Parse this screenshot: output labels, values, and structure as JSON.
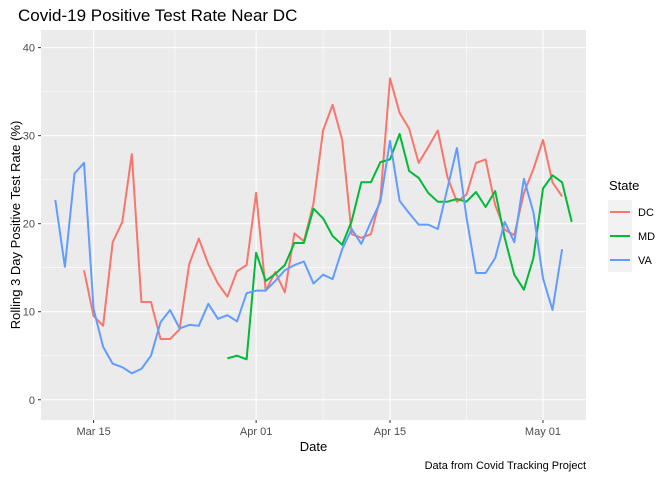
{
  "chart_data": {
    "type": "line",
    "title": "Covid-19 Positive Test Rate Near DC",
    "caption": "Data from Covid Tracking Project",
    "xlabel": "Date",
    "ylabel": "Rolling 3 Day Positive Test Rate (%)",
    "x_tick_labels": [
      {
        "label": "Mar 15",
        "day": 14
      },
      {
        "label": "Apr 01",
        "day": 31
      },
      {
        "label": "Apr 15",
        "day": 45
      },
      {
        "label": "May 01",
        "day": 61
      }
    ],
    "x_unit_note": "day = day of year 2020 offset from Mar 1 = 0",
    "ylim": [
      -2.3,
      42
    ],
    "yticks": [
      0,
      10,
      20,
      30,
      40
    ],
    "grid": true,
    "legend": {
      "title": "State",
      "position": "right"
    },
    "series": [
      {
        "name": "DC",
        "color": "#F8766D",
        "points": [
          [
            13,
            14.7
          ],
          [
            14,
            9.5
          ],
          [
            15,
            8.4
          ],
          [
            16,
            17.9
          ],
          [
            17,
            20.2
          ],
          [
            18,
            27.9
          ],
          [
            19,
            11.1
          ],
          [
            20,
            11.1
          ],
          [
            21,
            6.9
          ],
          [
            22,
            6.9
          ],
          [
            23,
            8.0
          ],
          [
            24,
            15.4
          ],
          [
            25,
            18.3
          ],
          [
            26,
            15.4
          ],
          [
            27,
            13.2
          ],
          [
            28,
            11.7
          ],
          [
            29,
            14.6
          ],
          [
            30,
            15.3
          ],
          [
            31,
            23.5
          ],
          [
            32,
            12.4
          ],
          [
            33,
            14.5
          ],
          [
            34,
            12.2
          ],
          [
            35,
            18.9
          ],
          [
            36,
            18.0
          ],
          [
            37,
            22.3
          ],
          [
            38,
            30.6
          ],
          [
            39,
            33.5
          ],
          [
            40,
            29.5
          ],
          [
            41,
            18.8
          ],
          [
            42,
            18.4
          ],
          [
            43,
            18.8
          ],
          [
            44,
            22.9
          ],
          [
            45,
            36.5
          ],
          [
            46,
            32.6
          ],
          [
            47,
            30.8
          ],
          [
            48,
            26.9
          ],
          [
            49,
            28.7
          ],
          [
            50,
            30.6
          ],
          [
            51,
            25.3
          ],
          [
            52,
            22.5
          ],
          [
            53,
            23.3
          ],
          [
            54,
            26.9
          ],
          [
            55,
            27.3
          ],
          [
            56,
            22.1
          ],
          [
            57,
            19.3
          ],
          [
            58,
            18.7
          ],
          [
            59,
            23.5
          ],
          [
            60,
            26.2
          ],
          [
            61,
            29.5
          ],
          [
            62,
            24.7
          ],
          [
            63,
            23.1
          ]
        ]
      },
      {
        "name": "MD",
        "color": "#00BA38",
        "points": [
          [
            28,
            4.7
          ],
          [
            29,
            5.0
          ],
          [
            30,
            4.6
          ],
          [
            31,
            16.7
          ],
          [
            32,
            13.5
          ],
          [
            33,
            14.3
          ],
          [
            34,
            15.3
          ],
          [
            35,
            17.8
          ],
          [
            36,
            17.8
          ],
          [
            37,
            21.7
          ],
          [
            38,
            20.6
          ],
          [
            39,
            18.6
          ],
          [
            40,
            17.6
          ],
          [
            41,
            20.3
          ],
          [
            42,
            24.7
          ],
          [
            43,
            24.7
          ],
          [
            44,
            27.0
          ],
          [
            45,
            27.3
          ],
          [
            46,
            30.2
          ],
          [
            47,
            26.0
          ],
          [
            48,
            25.2
          ],
          [
            49,
            23.5
          ],
          [
            50,
            22.5
          ],
          [
            51,
            22.5
          ],
          [
            52,
            22.8
          ],
          [
            53,
            22.5
          ],
          [
            54,
            23.6
          ],
          [
            55,
            21.9
          ],
          [
            56,
            23.7
          ],
          [
            57,
            18.4
          ],
          [
            58,
            14.2
          ],
          [
            59,
            12.5
          ],
          [
            60,
            16.1
          ],
          [
            61,
            24.0
          ],
          [
            62,
            25.5
          ],
          [
            63,
            24.7
          ],
          [
            64,
            20.2
          ]
        ]
      },
      {
        "name": "VA",
        "color": "#619CFF",
        "points": [
          [
            10,
            22.7
          ],
          [
            11,
            15.1
          ],
          [
            12,
            25.7
          ],
          [
            13,
            26.9
          ],
          [
            14,
            10.3
          ],
          [
            15,
            6.0
          ],
          [
            16,
            4.1
          ],
          [
            17,
            3.7
          ],
          [
            18,
            3.0
          ],
          [
            19,
            3.5
          ],
          [
            20,
            5.0
          ],
          [
            21,
            8.8
          ],
          [
            22,
            10.2
          ],
          [
            23,
            8.1
          ],
          [
            24,
            8.5
          ],
          [
            25,
            8.4
          ],
          [
            26,
            10.9
          ],
          [
            27,
            9.2
          ],
          [
            28,
            9.6
          ],
          [
            29,
            8.9
          ],
          [
            30,
            12.1
          ],
          [
            31,
            12.4
          ],
          [
            32,
            12.4
          ],
          [
            33,
            13.5
          ],
          [
            34,
            14.7
          ],
          [
            35,
            15.3
          ],
          [
            36,
            15.7
          ],
          [
            37,
            13.2
          ],
          [
            38,
            14.2
          ],
          [
            39,
            13.7
          ],
          [
            40,
            17.1
          ],
          [
            41,
            19.4
          ],
          [
            42,
            17.7
          ],
          [
            43,
            20.2
          ],
          [
            44,
            22.5
          ],
          [
            45,
            29.4
          ],
          [
            46,
            22.6
          ],
          [
            47,
            21.2
          ],
          [
            48,
            19.9
          ],
          [
            49,
            19.9
          ],
          [
            50,
            19.4
          ],
          [
            51,
            24.0
          ],
          [
            52,
            28.6
          ],
          [
            53,
            20.7
          ],
          [
            54,
            14.4
          ],
          [
            55,
            14.4
          ],
          [
            56,
            16.1
          ],
          [
            57,
            20.2
          ],
          [
            58,
            17.9
          ],
          [
            59,
            25.1
          ],
          [
            60,
            21.3
          ],
          [
            61,
            13.8
          ],
          [
            62,
            10.2
          ],
          [
            63,
            17.1
          ]
        ]
      }
    ]
  }
}
